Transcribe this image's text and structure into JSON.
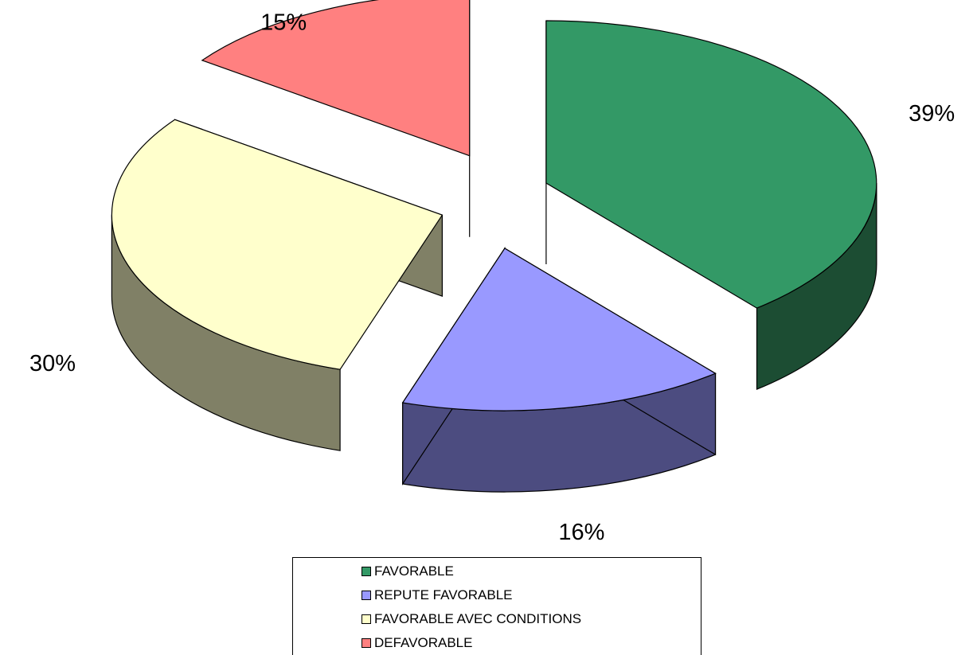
{
  "chart_data": {
    "type": "pie",
    "style": "3d-exploded",
    "categories": [
      "FAVORABLE",
      "REPUTE FAVORABLE",
      "FAVORABLE AVEC CONDITIONS",
      "DEFAVORABLE"
    ],
    "values": [
      39,
      16,
      30,
      15
    ],
    "data_labels": [
      "39%",
      "16%",
      "30%",
      "15%"
    ],
    "colors": {
      "top": [
        "#339966",
        "#9999ff",
        "#ffffcc",
        "#ff8080"
      ],
      "side": [
        "#1c4d33",
        "#4c4c80",
        "#808066",
        "#804040"
      ]
    },
    "legend": {
      "position": "bottom",
      "items": [
        {
          "label": "FAVORABLE",
          "color": "#339966"
        },
        {
          "label": "REPUTE FAVORABLE",
          "color": "#9999ff"
        },
        {
          "label": "FAVORABLE AVEC CONDITIONS",
          "color": "#ffffcc"
        },
        {
          "label": "DEFAVORABLE",
          "color": "#ff8080"
        }
      ]
    }
  }
}
